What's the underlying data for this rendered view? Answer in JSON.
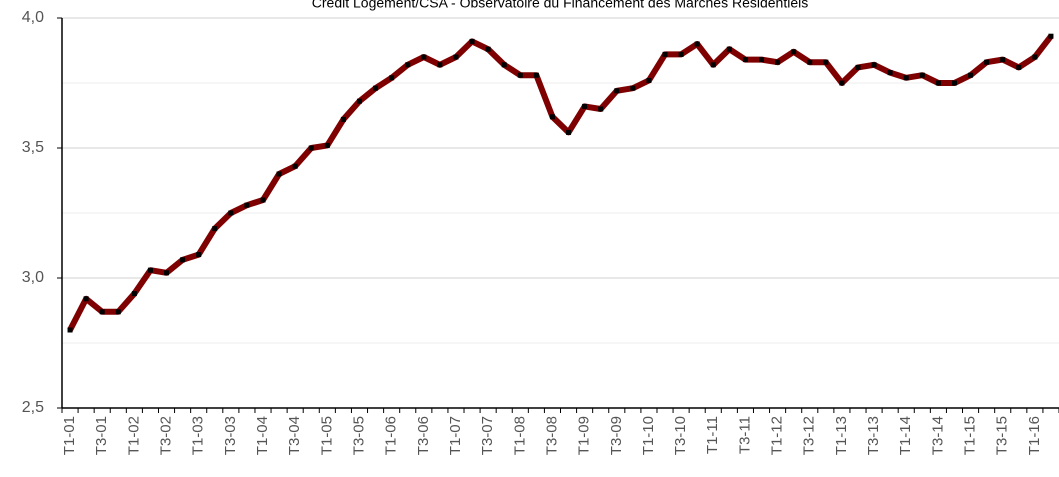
{
  "chart_data": {
    "type": "line",
    "title": "Crédit Logement/CSA - Observatoire du Financement des Marchés Résidentiels",
    "categories": [
      "T1-01",
      null,
      "T3-01",
      null,
      "T1-02",
      null,
      "T3-02",
      null,
      "T1-03",
      null,
      "T3-03",
      null,
      "T1-04",
      null,
      "T3-04",
      null,
      "T1-05",
      null,
      "T3-05",
      null,
      "T1-06",
      null,
      "T3-06",
      null,
      "T1-07",
      null,
      "T3-07",
      null,
      "T1-08",
      null,
      "T3-08",
      null,
      "T1-09",
      null,
      "T3-09",
      null,
      "T1-10",
      null,
      "T3-10",
      null,
      "T1-11",
      null,
      "T3-11",
      null,
      "T1-12",
      null,
      "T3-12",
      null,
      "T1-13",
      null,
      "T3-13",
      null,
      "T1-14",
      null,
      "T3-14",
      null,
      "T1-15",
      null,
      "T3-15",
      null,
      "T1-16",
      null
    ],
    "series": [
      {
        "color": "#7f0000",
        "marker_color": "#000000",
        "values": [
          2.8,
          2.92,
          2.87,
          2.87,
          2.94,
          3.03,
          3.02,
          3.07,
          3.09,
          3.19,
          3.25,
          3.28,
          3.3,
          3.4,
          3.43,
          3.5,
          3.51,
          3.61,
          3.68,
          3.73,
          3.77,
          3.82,
          3.85,
          3.82,
          3.85,
          3.91,
          3.88,
          3.82,
          3.78,
          3.78,
          3.62,
          3.56,
          3.66,
          3.65,
          3.72,
          3.73,
          3.76,
          3.86,
          3.86,
          3.9,
          3.82,
          3.88,
          3.84,
          3.84,
          3.83,
          3.87,
          3.83,
          3.83,
          3.75,
          3.81,
          3.82,
          3.79,
          3.77,
          3.78,
          3.75,
          3.75,
          3.78,
          3.83,
          3.84,
          3.81,
          3.85,
          3.93
        ]
      }
    ],
    "ylim": [
      2.5,
      4.0
    ],
    "yticks": [
      {
        "value": 2.5,
        "label": "2,5"
      },
      {
        "value": 3.0,
        "label": "3,0"
      },
      {
        "value": 3.5,
        "label": "3,5"
      },
      {
        "value": 4.0,
        "label": "4,0"
      }
    ],
    "minor_yticks": [
      2.75,
      3.25,
      3.75
    ],
    "grid": true
  }
}
